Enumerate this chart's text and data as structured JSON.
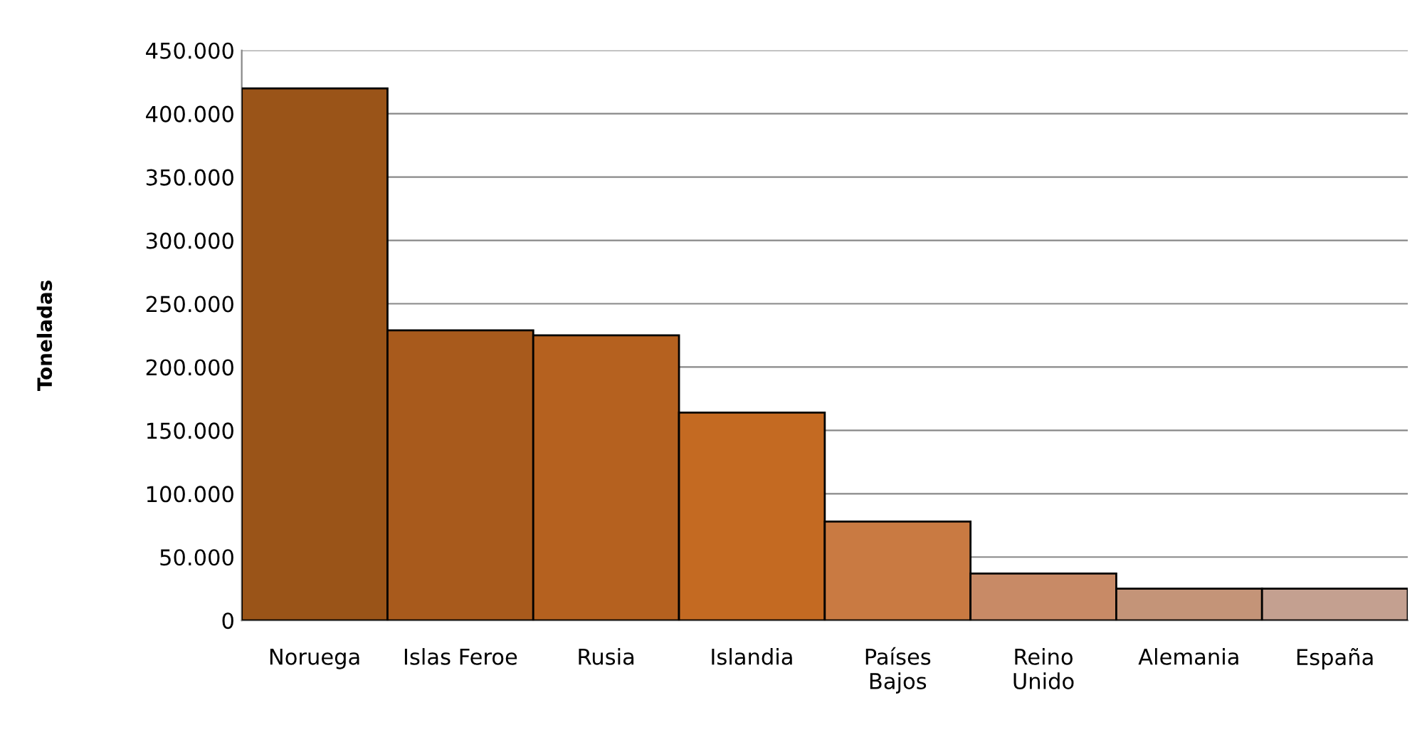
{
  "chart_data": {
    "type": "bar",
    "ylabel": "Toneladas",
    "categories": [
      "Noruega",
      "Islas Feroe",
      "Rusia",
      "Islandia",
      "Países\nBajos",
      "Reino\nUnido",
      "Alemania",
      "España"
    ],
    "values": [
      420000,
      229000,
      225000,
      164000,
      78000,
      37000,
      25000,
      25000
    ],
    "colors": [
      "#9a5418",
      "#a85a1c",
      "#b5611f",
      "#c46a22",
      "#c97a42",
      "#c88a66",
      "#c49478",
      "#c4a090"
    ],
    "ylim": [
      0,
      450000
    ],
    "yticks": [
      0,
      {
        "value": 50000,
        "label": "50.000"
      },
      {
        "value": 100000,
        "label": "100.000"
      },
      {
        "value": 150000,
        "label": "150.000"
      },
      {
        "value": 200000,
        "label": "200.000"
      },
      {
        "value": 250000,
        "label": "250.000"
      },
      {
        "value": 300000,
        "label": "300.000"
      },
      {
        "value": 350000,
        "label": "350.000"
      },
      {
        "value": 400000,
        "label": "400.000"
      },
      {
        "value": 450000,
        "label": "450.000"
      }
    ],
    "grid": "y"
  }
}
